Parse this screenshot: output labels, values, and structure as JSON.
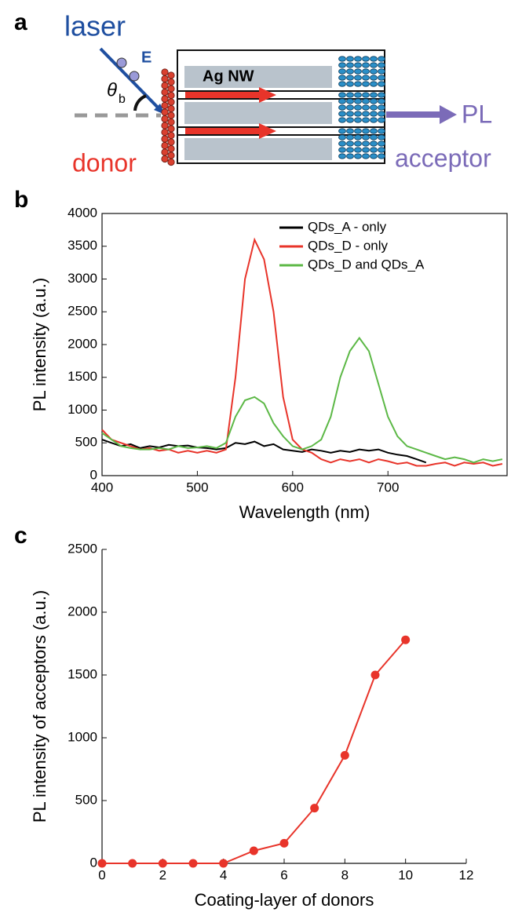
{
  "diagram": {
    "label": "a",
    "laser": "laser",
    "field": "E",
    "angle": "θ",
    "angle_sub": "b",
    "wire": "Ag NW",
    "output": "PL",
    "donor": "donor",
    "acceptor": "acceptor"
  },
  "chart_data": [
    {
      "type": "line",
      "label": "b",
      "xlabel": "Wavelength (nm)",
      "ylabel": "PL intensity (a.u.)",
      "x": [
        400,
        410,
        420,
        430,
        440,
        450,
        460,
        470,
        480,
        490,
        500,
        510,
        520,
        530,
        540,
        550,
        560,
        570,
        580,
        590,
        600,
        610,
        620,
        630,
        640,
        650,
        660,
        670,
        680,
        690,
        700,
        710,
        720,
        730,
        740,
        750,
        760,
        770,
        780,
        790,
        800,
        810,
        820
      ],
      "series": [
        {
          "name": "QDs_A - only",
          "color": "#000000",
          "values": [
            550,
            500,
            450,
            480,
            420,
            450,
            430,
            470,
            450,
            460,
            430,
            420,
            400,
            420,
            500,
            480,
            520,
            450,
            480,
            400,
            380,
            360,
            400,
            380,
            350,
            380,
            360,
            400,
            380,
            400,
            350,
            320,
            300,
            250,
            200,
            null,
            null,
            null,
            null,
            null,
            null,
            null,
            null
          ]
        },
        {
          "name": "QDs_D - only",
          "color": "#e8342a",
          "values": [
            700,
            550,
            500,
            450,
            400,
            420,
            380,
            400,
            350,
            380,
            350,
            380,
            350,
            400,
            1500,
            3000,
            3600,
            3300,
            2500,
            1200,
            550,
            400,
            350,
            250,
            200,
            250,
            220,
            250,
            200,
            250,
            220,
            180,
            200,
            150,
            150,
            180,
            200,
            150,
            200,
            180,
            200,
            150,
            180
          ]
        },
        {
          "name": "QDs_D and QDs_A",
          "color": "#5cb846",
          "values": [
            650,
            550,
            450,
            420,
            400,
            400,
            420,
            400,
            450,
            420,
            430,
            450,
            420,
            500,
            900,
            1150,
            1200,
            1100,
            800,
            600,
            450,
            400,
            450,
            550,
            900,
            1500,
            1900,
            2100,
            1900,
            1400,
            900,
            600,
            450,
            400,
            350,
            300,
            250,
            280,
            250,
            200,
            250,
            220,
            250
          ]
        }
      ],
      "xlim": [
        400,
        825
      ],
      "xticks": [
        400,
        500,
        600,
        700
      ],
      "ylim": [
        0,
        4000
      ],
      "yticks": [
        0,
        500,
        1000,
        1500,
        2000,
        2500,
        3000,
        3500,
        4000
      ],
      "legend": "upper right",
      "box": true
    },
    {
      "type": "line",
      "label": "c",
      "xlabel": "Coating-layer of donors",
      "ylabel": "PL intensity of acceptors (a.u.)",
      "x": [
        0,
        1,
        2,
        3,
        4,
        5,
        6,
        7,
        8,
        9,
        10
      ],
      "series": [
        {
          "color": "#e8342a",
          "values": [
            0,
            0,
            0,
            0,
            0,
            100,
            160,
            440,
            860,
            1500,
            1780
          ]
        }
      ],
      "marker": "circle",
      "xlim": [
        0,
        12
      ],
      "xticks": [
        0,
        2,
        4,
        6,
        8,
        10,
        12
      ],
      "ylim": [
        0,
        2500
      ],
      "yticks": [
        0,
        500,
        1000,
        1500,
        2000,
        2500
      ],
      "box": false
    }
  ]
}
